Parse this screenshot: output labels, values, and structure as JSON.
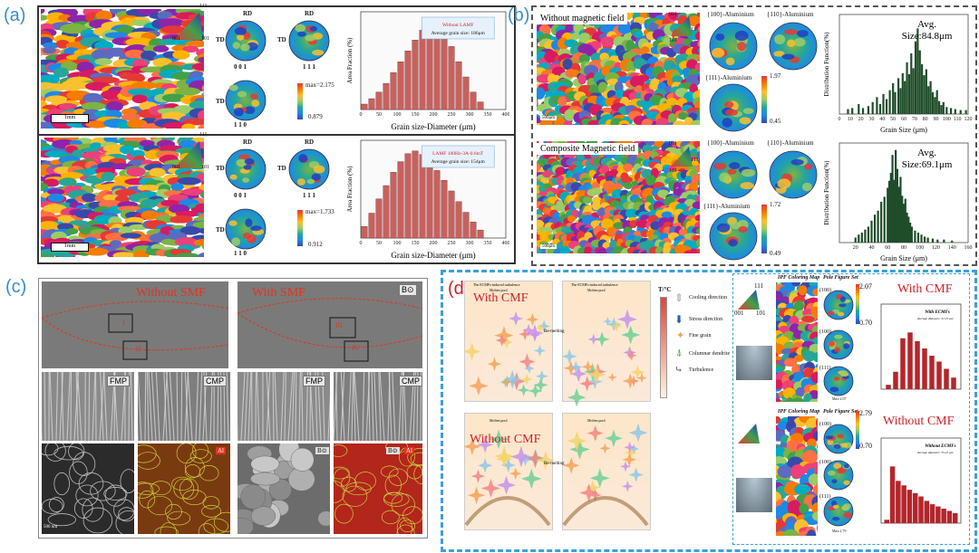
{
  "figure": {
    "panel_a": {
      "label": "(a)",
      "rows": [
        {
          "texture_labels": [
            "RD",
            "RD",
            "TD",
            "TD",
            "TD",
            "0 0 1",
            "1 1 1",
            "1 1 0",
            "111",
            "001",
            "101"
          ],
          "max_label": "max=2.175",
          "min_label": "0.879",
          "scale_label": "1mm",
          "chart_title": "Without LAMF",
          "chart_subtitle": "Average grain size: 186μm"
        },
        {
          "texture_labels": [
            "RD",
            "RD",
            "TD",
            "TD",
            "TD",
            "0 0 1",
            "1 1 1",
            "1 1 0",
            "111",
            "001",
            "101"
          ],
          "max_label": "max=1.733",
          "min_label": "0.912",
          "scale_label": "1mm",
          "chart_title": "LAMF 100Hz-3A-0.6mT",
          "chart_subtitle": "Average grain size: 154μm"
        }
      ],
      "xlabel": "Grain size-Diameter (μm)",
      "ylabel": "Area Fraction (%)"
    },
    "panel_b": {
      "label": "(b)",
      "rows": [
        {
          "title": "Without magnetic field",
          "pole_labels": [
            "{100}-Aluminium",
            "{110}-Aluminium",
            "{111}-Aluminium"
          ],
          "max_label": "1.97",
          "min_label": "0.45",
          "scale_label": "500μm",
          "avg_title": "Avg.",
          "avg_value": "Size:84.8μm",
          "ipf": [
            "001",
            "111",
            "101"
          ]
        },
        {
          "title": "Composite Magnetic field",
          "pole_labels": [
            "{100}-Aluminium",
            "{110}-Aluminium",
            "{111}-Aluminium"
          ],
          "max_label": "1.72",
          "min_label": "0.49",
          "scale_label": "500μm",
          "avg_title": "Avg.",
          "avg_value": "Size:69.1μm",
          "ipf": [
            "001",
            "111",
            "101"
          ]
        }
      ],
      "xlabel": "Grain Size (μm)",
      "ylabel": "Distribution Function(%)"
    },
    "panel_c": {
      "label": "(c)",
      "top_left_title": "Without SMF",
      "top_right_title": "With SMF",
      "b_tag": "B",
      "regions": [
        "I",
        "II",
        "III",
        "IV"
      ],
      "mid_tags": [
        "FMP",
        "CMP",
        "FMP",
        "CMP"
      ],
      "bottom_tags": [
        "Al",
        "Al",
        "B⊙",
        "B⊙"
      ],
      "scale_label": "500 nm"
    },
    "panel_d": {
      "label": "(d)",
      "with_cmf": "With CMF",
      "without_cmf": "Without CMF",
      "schematic_titles": [
        "The ECMFs-induced turbulence",
        "The ECMFs-induced turbulence"
      ],
      "molten_pool": "Molten pool",
      "remelting": "Re-melting",
      "legend_title": "T/°C",
      "legend_items": [
        "Cooling direction",
        "Stress direction",
        "Fine grain",
        "Columnar dendrite",
        "Turbulence"
      ],
      "ipf_title": "IPF Coloring Map",
      "pole_title": "Pole Figure Set",
      "ipf_labels": [
        "111",
        "001",
        "101"
      ],
      "pole_sets": [
        {
          "labels": [
            "(100)",
            "(100)",
            "(111)"
          ],
          "max": "2.07",
          "min": "0.70",
          "mark": "Max:2.07"
        },
        {
          "labels": [
            "(100)",
            "(100)",
            "(111)"
          ],
          "max": "2.79",
          "min": "0.70",
          "mark": "Max:2.79"
        }
      ],
      "chart_titles": [
        "With ECMFs",
        "Without ECMFs"
      ],
      "chart_subtitles": [
        "Average diameter: 31.25 μm",
        "Average diameter: 35.47 μm"
      ]
    }
  },
  "chart_data": [
    {
      "type": "bar",
      "title": "Without LAMF",
      "subtitle": "Average grain size: 186μm",
      "xlabel": "Grain size-Diameter (μm)",
      "ylabel": "Area Fraction (%)",
      "x": [
        10,
        30,
        50,
        70,
        90,
        110,
        130,
        150,
        170,
        190,
        210,
        230,
        250,
        270,
        290,
        310,
        330
      ],
      "values": [
        0.5,
        1.0,
        1.6,
        2.4,
        3.4,
        4.4,
        5.4,
        6.4,
        7.3,
        7.9,
        7.6,
        6.8,
        5.8,
        4.4,
        3.0,
        1.6,
        0.7
      ],
      "xlim": [
        0,
        400
      ],
      "xticks": [
        0,
        50,
        100,
        150,
        200,
        250,
        300,
        350,
        400
      ],
      "ylim": [
        0,
        9
      ],
      "color": "#c8615d"
    },
    {
      "type": "bar",
      "title": "LAMF 100Hz-3A-0.6mT",
      "subtitle": "Average grain size: 154μm",
      "xlabel": "Grain size-Diameter (μm)",
      "ylabel": "Area Fraction (%)",
      "x": [
        10,
        30,
        50,
        70,
        90,
        110,
        130,
        150,
        170,
        190,
        210,
        230,
        250,
        270,
        290,
        310,
        330
      ],
      "values": [
        1.3,
        2.8,
        4.4,
        5.9,
        7.4,
        8.6,
        9.5,
        9.8,
        9.4,
        8.6,
        7.6,
        6.5,
        5.3,
        4.1,
        2.9,
        1.8,
        0.9
      ],
      "xlim": [
        0,
        400
      ],
      "xticks": [
        0,
        50,
        100,
        150,
        200,
        250,
        300,
        350,
        400
      ],
      "ylim": [
        0,
        11
      ],
      "color": "#c8615d"
    },
    {
      "type": "bar",
      "title": "Avg. Size:84.8μm",
      "xlabel": "Grain Size (μm)",
      "ylabel": "Distribution Function(%)",
      "xlim": [
        0,
        120
      ],
      "xticks": [
        0,
        10,
        20,
        30,
        40,
        50,
        60,
        70,
        80,
        90,
        100,
        110,
        120
      ],
      "ylim": [
        0,
        10
      ],
      "x": [
        8,
        12,
        18,
        22,
        27,
        31,
        35,
        38,
        41,
        44,
        47,
        50,
        52,
        55,
        57,
        59,
        61,
        63,
        65,
        67,
        69,
        71,
        73,
        75,
        77,
        79,
        81,
        83,
        85,
        87,
        89,
        91,
        93,
        95,
        97,
        100,
        104,
        108,
        113,
        118
      ],
      "values": [
        0.5,
        0.6,
        1.0,
        0.6,
        0.8,
        1.2,
        1.7,
        1.0,
        2.0,
        1.5,
        2.4,
        3.1,
        2.2,
        3.6,
        2.6,
        4.1,
        3.3,
        5.2,
        4.0,
        6.1,
        4.6,
        7.3,
        8.6,
        6.4,
        5.0,
        3.9,
        4.5,
        2.8,
        3.3,
        2.2,
        1.7,
        2.4,
        1.3,
        0.9,
        1.2,
        0.7,
        0.6,
        0.5,
        0.4,
        0.4
      ],
      "color": "#1f4d2a"
    },
    {
      "type": "bar",
      "title": "Avg. Size:69.1μm",
      "xlabel": "Grain Size (μm)",
      "ylabel": "Distribution Function(%)",
      "xlim": [
        0,
        160
      ],
      "xticks": [
        20,
        40,
        60,
        80,
        100,
        120,
        140,
        160
      ],
      "ylim": [
        0,
        10
      ],
      "x": [
        20,
        24,
        28,
        32,
        36,
        40,
        44,
        48,
        52,
        56,
        60,
        62,
        64,
        66,
        68,
        70,
        72,
        74,
        76,
        78,
        80,
        82,
        84,
        86,
        88,
        90,
        94,
        98,
        102,
        106,
        110,
        116,
        122,
        130,
        140
      ],
      "values": [
        0.5,
        0.8,
        1.0,
        1.3,
        1.6,
        2.2,
        2.8,
        3.2,
        4.1,
        4.6,
        5.5,
        6.2,
        7.0,
        8.8,
        6.3,
        9.3,
        7.4,
        5.6,
        6.6,
        4.7,
        3.9,
        4.4,
        3.0,
        2.6,
        2.0,
        1.6,
        1.2,
        1.0,
        0.8,
        0.6,
        0.5,
        0.4,
        0.3,
        0.3,
        0.2
      ],
      "color": "#1f4d2a"
    },
    {
      "type": "bar",
      "title": "With ECMFs",
      "subtitle": "Average diameter: 31.25 μm",
      "x": [
        1,
        2,
        3,
        4,
        5,
        6,
        7,
        8,
        9,
        10
      ],
      "values": [
        0.3,
        1.2,
        3.5,
        3.9,
        3.3,
        2.8,
        2.3,
        1.9,
        1.4,
        0.8
      ],
      "color": "#b3262b"
    },
    {
      "type": "bar",
      "title": "Without ECMFs",
      "subtitle": "Average diameter: 35.47 μm",
      "x": [
        1,
        2,
        3,
        4,
        5,
        6,
        7,
        8,
        9,
        10,
        11,
        12,
        13
      ],
      "values": [
        0.3,
        5.1,
        3.8,
        3.4,
        3.0,
        2.7,
        2.4,
        2.0,
        1.7,
        1.5,
        1.3,
        1.1,
        0.9
      ],
      "color": "#b3262b"
    }
  ]
}
